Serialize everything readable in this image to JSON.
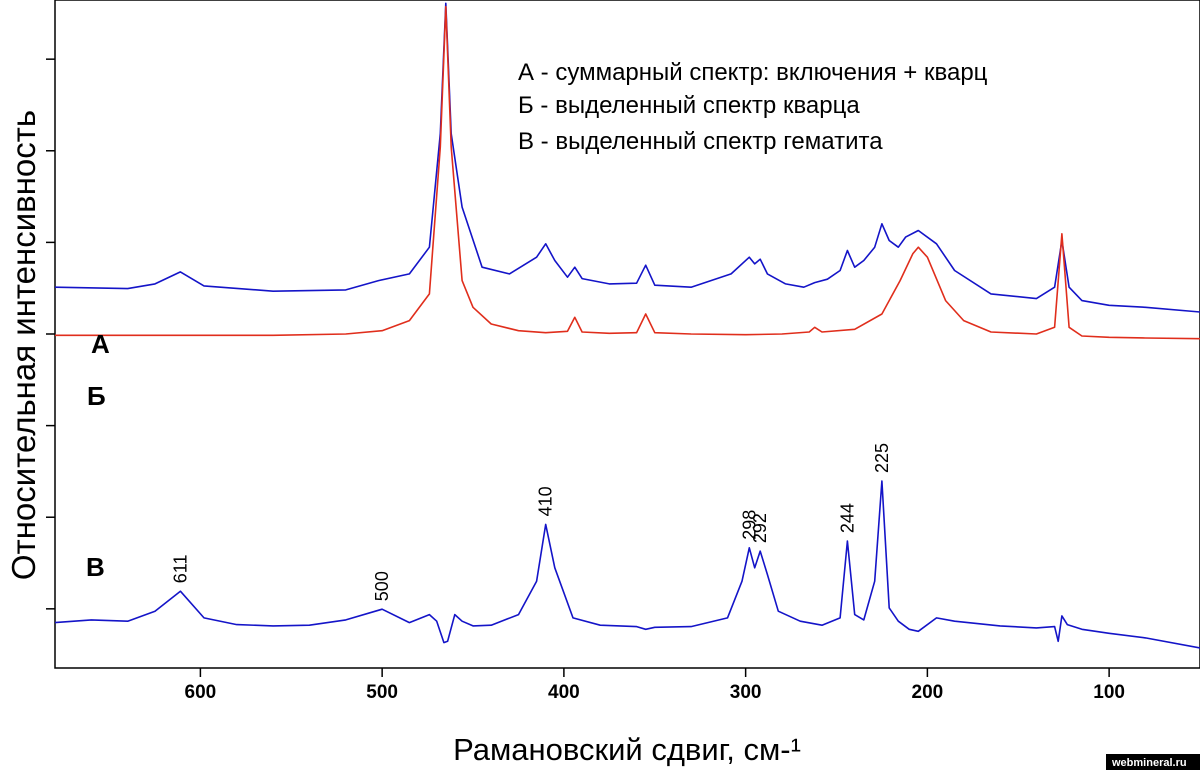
{
  "chart_data": {
    "type": "line",
    "title": "",
    "xlabel": "Рамановский сдвиг, см-¹",
    "ylabel": "Относительная интенсивность",
    "xlim": [
      680,
      50
    ],
    "x_reversed": true,
    "xticks": [
      "600",
      "500",
      "400",
      "300",
      "200",
      "100"
    ],
    "xtick_values": [
      600,
      500,
      400,
      300,
      200,
      100
    ],
    "ytick_count": 7,
    "ylim": [
      0,
      1
    ],
    "grid": false,
    "legend": {
      "placement": "top-right",
      "entries": [
        "А - суммарный спектр: включения + кварц",
        "Б - выделенный спектр кварца",
        "В - выделенный спектр гематита"
      ]
    },
    "series": [
      {
        "name": "А",
        "color": "#1414c8",
        "baseline": 0.563,
        "x": [
          680,
          640,
          625,
          611,
          598,
          560,
          520,
          502,
          485,
          474,
          468,
          465,
          462,
          456,
          445,
          430,
          415,
          410,
          405,
          398,
          394,
          390,
          375,
          360,
          355,
          350,
          330,
          308,
          298,
          295,
          292,
          288,
          278,
          268,
          262,
          255,
          248,
          244,
          240,
          235,
          229,
          225,
          221,
          216,
          212,
          205,
          195,
          185,
          165,
          140,
          130,
          126,
          122,
          115,
          100,
          80,
          50
        ],
        "y": [
          0.57,
          0.568,
          0.575,
          0.593,
          0.572,
          0.564,
          0.566,
          0.58,
          0.59,
          0.63,
          0.8,
          0.995,
          0.8,
          0.69,
          0.6,
          0.59,
          0.615,
          0.635,
          0.61,
          0.585,
          0.6,
          0.583,
          0.575,
          0.576,
          0.603,
          0.573,
          0.57,
          0.59,
          0.615,
          0.605,
          0.612,
          0.59,
          0.575,
          0.57,
          0.577,
          0.582,
          0.595,
          0.625,
          0.6,
          0.61,
          0.63,
          0.665,
          0.64,
          0.63,
          0.645,
          0.655,
          0.635,
          0.595,
          0.56,
          0.553,
          0.57,
          0.64,
          0.57,
          0.55,
          0.543,
          0.54,
          0.533
        ]
      },
      {
        "name": "Б",
        "color": "#e02e1c",
        "baseline": 0.498,
        "x": [
          680,
          560,
          520,
          500,
          485,
          474,
          468,
          465,
          462,
          456,
          450,
          440,
          425,
          410,
          398,
          394,
          390,
          375,
          360,
          355,
          350,
          330,
          300,
          280,
          265,
          262,
          258,
          240,
          225,
          215,
          208,
          205,
          200,
          190,
          180,
          165,
          140,
          130,
          126,
          122,
          115,
          100,
          80,
          50
        ],
        "y": [
          0.498,
          0.498,
          0.5,
          0.505,
          0.52,
          0.56,
          0.78,
          0.99,
          0.78,
          0.58,
          0.54,
          0.515,
          0.505,
          0.502,
          0.504,
          0.525,
          0.503,
          0.501,
          0.502,
          0.53,
          0.502,
          0.5,
          0.499,
          0.5,
          0.503,
          0.51,
          0.503,
          0.507,
          0.53,
          0.58,
          0.62,
          0.63,
          0.615,
          0.55,
          0.52,
          0.503,
          0.5,
          0.51,
          0.65,
          0.51,
          0.497,
          0.495,
          0.494,
          0.493
        ]
      },
      {
        "name": "В",
        "color": "#1414c8",
        "baseline": 0.066,
        "x": [
          680,
          660,
          640,
          625,
          611,
          598,
          580,
          560,
          540,
          520,
          500,
          485,
          474,
          470,
          466,
          464,
          460,
          456,
          450,
          440,
          425,
          415,
          410,
          405,
          395,
          380,
          360,
          355,
          350,
          330,
          310,
          302,
          298,
          295,
          292,
          288,
          282,
          270,
          258,
          248,
          244,
          240,
          235,
          229,
          225,
          221,
          216,
          210,
          205,
          195,
          185,
          160,
          140,
          130,
          128,
          126,
          123,
          115,
          100,
          80,
          50
        ],
        "y": [
          0.068,
          0.072,
          0.07,
          0.085,
          0.115,
          0.075,
          0.065,
          0.063,
          0.064,
          0.072,
          0.088,
          0.068,
          0.08,
          0.07,
          0.038,
          0.04,
          0.08,
          0.07,
          0.063,
          0.064,
          0.08,
          0.13,
          0.215,
          0.15,
          0.075,
          0.064,
          0.062,
          0.058,
          0.061,
          0.062,
          0.075,
          0.13,
          0.18,
          0.15,
          0.175,
          0.14,
          0.085,
          0.07,
          0.064,
          0.075,
          0.19,
          0.08,
          0.072,
          0.13,
          0.28,
          0.09,
          0.07,
          0.058,
          0.055,
          0.075,
          0.07,
          0.063,
          0.06,
          0.062,
          0.04,
          0.078,
          0.065,
          0.058,
          0.052,
          0.045,
          0.03
        ]
      }
    ],
    "annotations": [
      {
        "series": "В",
        "x": 611,
        "label": "611"
      },
      {
        "series": "В",
        "x": 500,
        "label": "500"
      },
      {
        "series": "В",
        "x": 410,
        "label": "410"
      },
      {
        "series": "В",
        "x": 298,
        "label": "298"
      },
      {
        "series": "В",
        "x": 292,
        "label": "292"
      },
      {
        "series": "В",
        "x": 244,
        "label": "244"
      },
      {
        "series": "В",
        "x": 225,
        "label": "225"
      }
    ]
  },
  "watermark": "webmineral.ru"
}
